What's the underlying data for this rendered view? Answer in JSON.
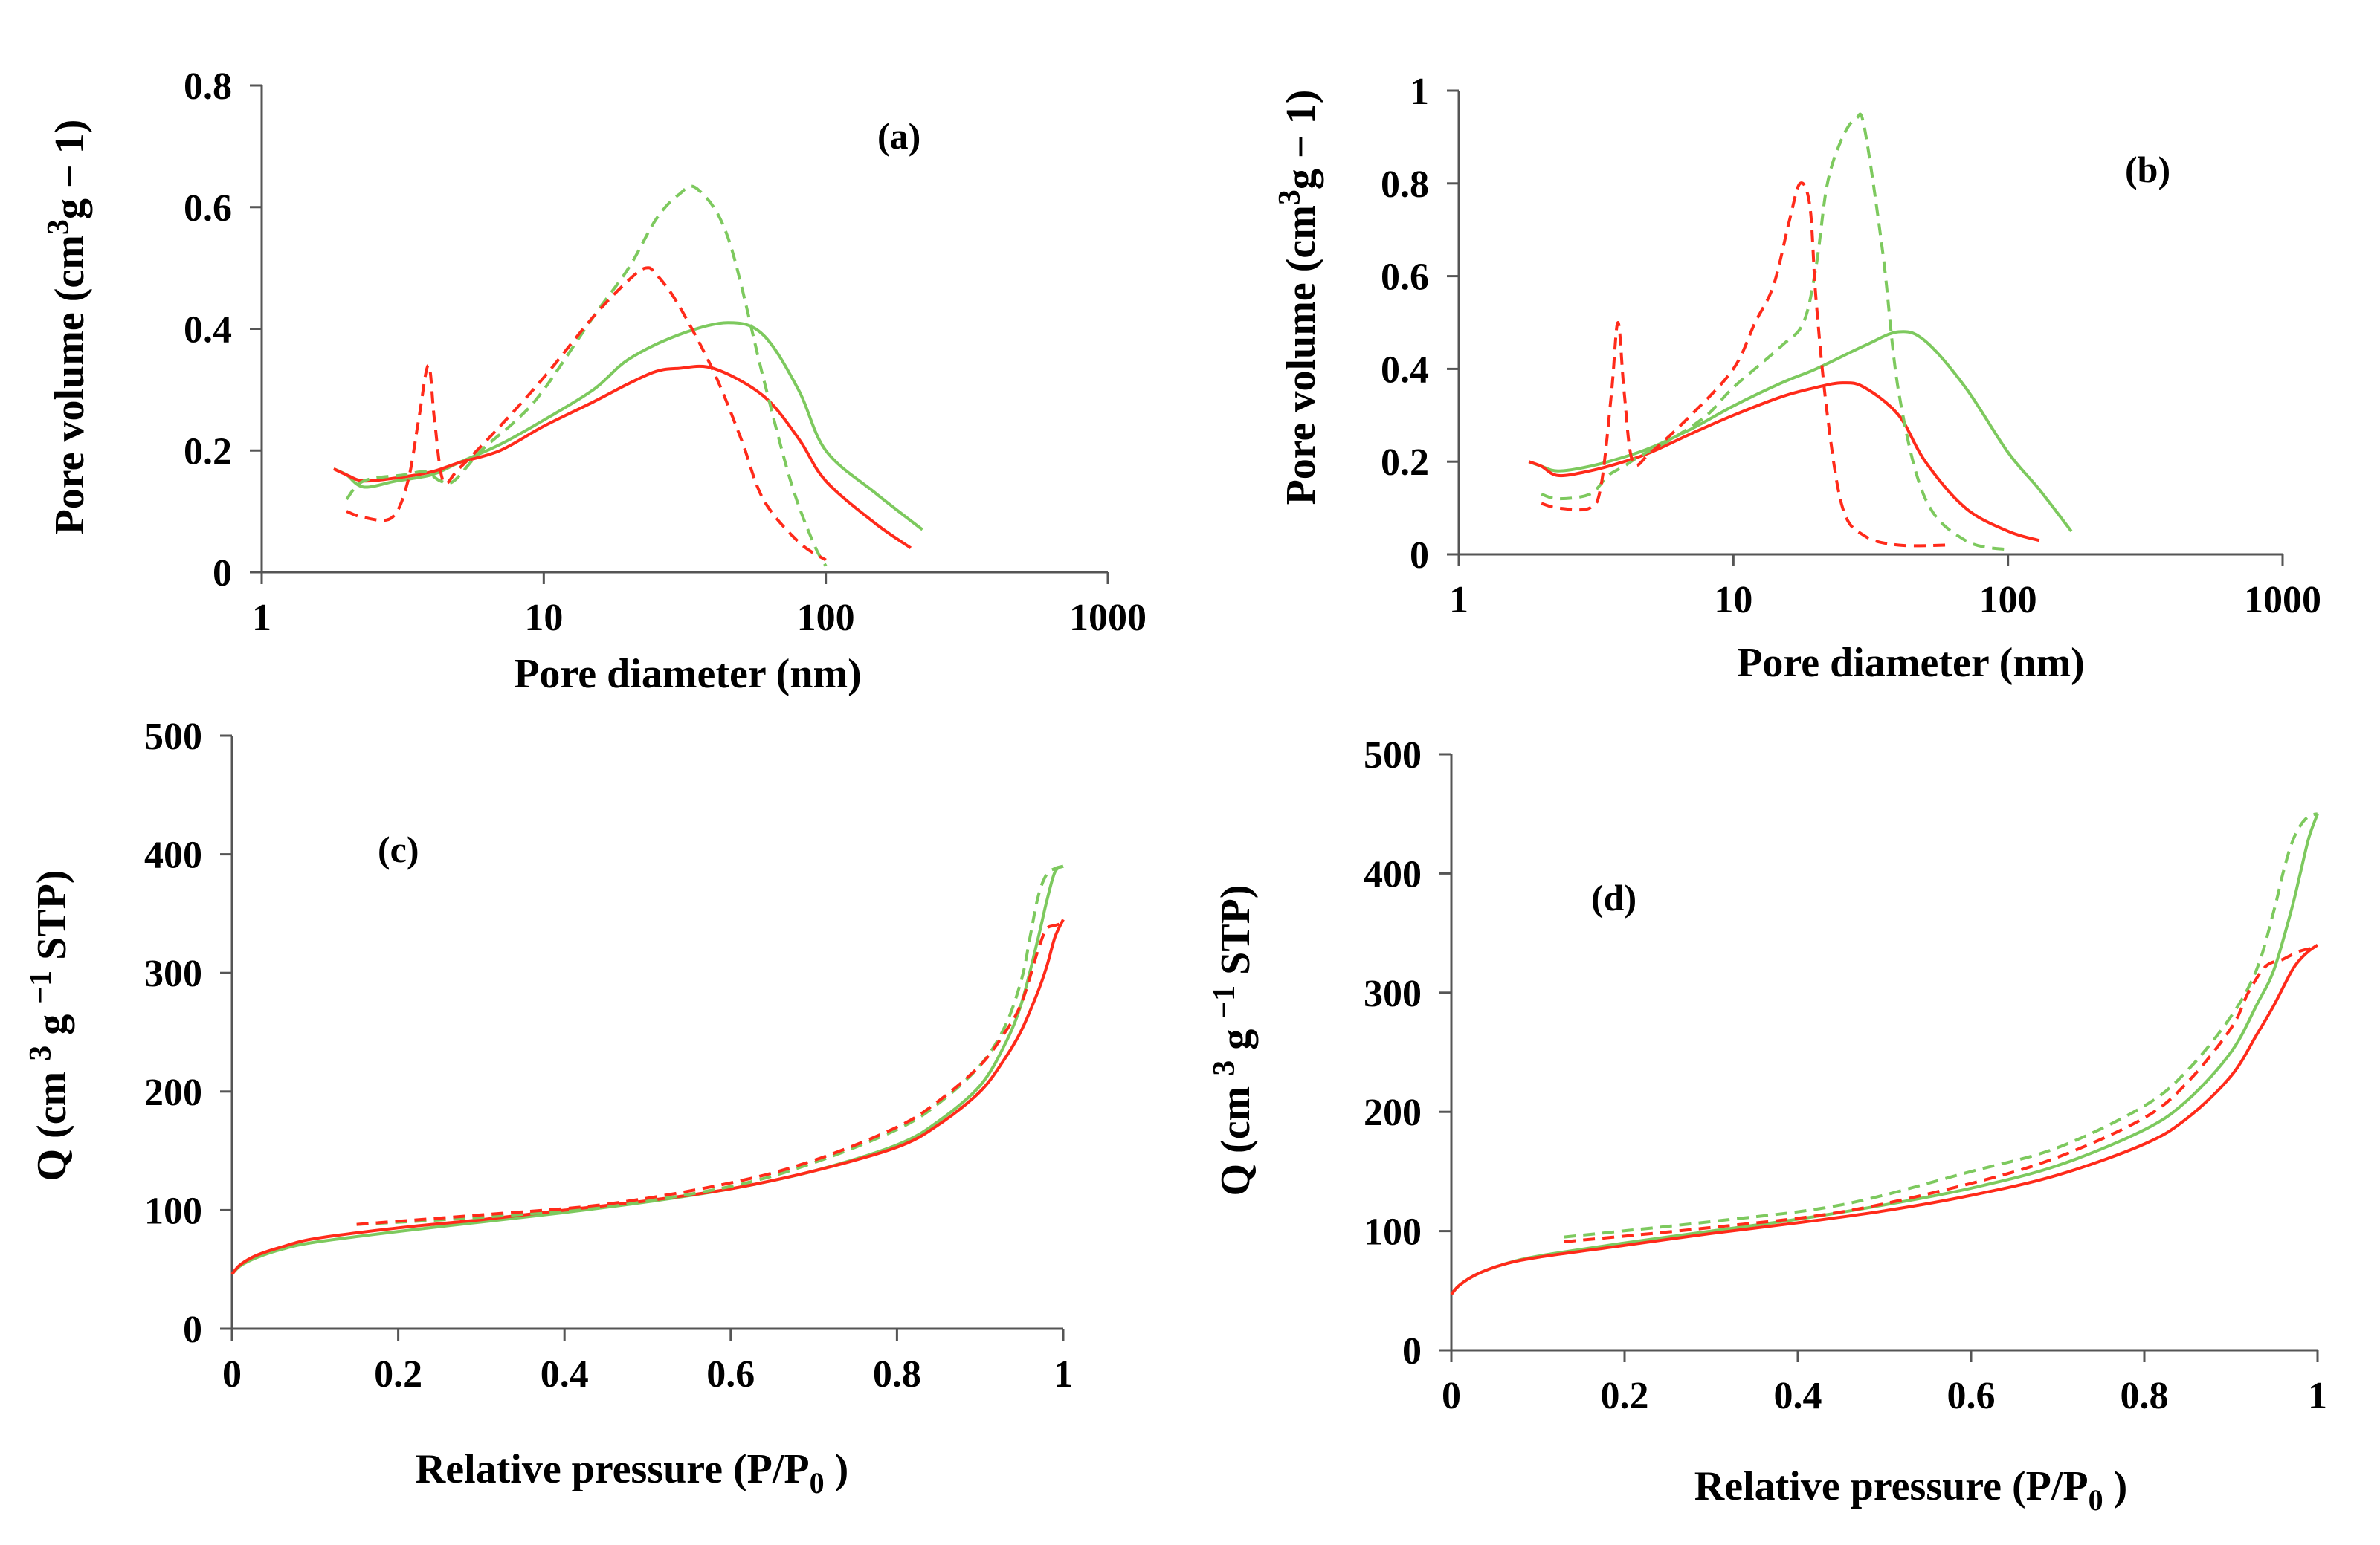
{
  "chart_data": [
    {
      "id": "a",
      "type": "line",
      "panel_label": "(a)",
      "xlabel": "Pore diameter (nm)",
      "ylabel": "Pore volume (cm3g − 1)",
      "ylabel_parts": {
        "pre": "Pore volume (cm",
        "sup": "3",
        "post": "g − 1)"
      },
      "x_scale": "log",
      "xlim": [
        1,
        1000
      ],
      "ylim": [
        0,
        0.8
      ],
      "xticks": [
        1,
        10,
        100,
        1000
      ],
      "xtick_labels": [
        "1",
        "10",
        "100",
        "1000"
      ],
      "yticks": [
        0,
        0.2,
        0.4,
        0.6,
        0.8
      ],
      "ytick_labels": [
        "0",
        "0.2",
        "0.4",
        "0.6",
        "0.8"
      ],
      "series": [
        {
          "name": "green-solid",
          "color": "#7dc95e",
          "dash": false,
          "x": [
            1.8,
            2.0,
            2.3,
            3,
            4,
            5,
            7,
            10,
            15,
            20,
            30,
            45,
            60,
            80,
            100,
            150,
            220
          ],
          "y": [
            0.17,
            0.16,
            0.14,
            0.15,
            0.16,
            0.18,
            0.21,
            0.25,
            0.3,
            0.35,
            0.39,
            0.41,
            0.39,
            0.3,
            0.2,
            0.13,
            0.07
          ]
        },
        {
          "name": "red-solid",
          "color": "#ff2a1a",
          "dash": false,
          "x": [
            1.8,
            2.0,
            2.3,
            3,
            4,
            5,
            7,
            10,
            15,
            20,
            25,
            30,
            40,
            60,
            80,
            100,
            150,
            200
          ],
          "y": [
            0.17,
            0.16,
            0.15,
            0.155,
            0.165,
            0.18,
            0.2,
            0.24,
            0.28,
            0.31,
            0.33,
            0.335,
            0.335,
            0.29,
            0.22,
            0.15,
            0.08,
            0.04
          ]
        },
        {
          "name": "green-dashed",
          "color": "#7dc95e",
          "dash": true,
          "x": [
            2.0,
            2.3,
            3.2,
            3.8,
            4.3,
            4.8,
            6,
            8,
            10,
            15,
            20,
            25,
            30,
            35,
            45,
            60,
            75,
            90,
            100
          ],
          "y": [
            0.12,
            0.15,
            0.16,
            0.165,
            0.15,
            0.15,
            0.2,
            0.25,
            0.3,
            0.42,
            0.5,
            0.58,
            0.62,
            0.63,
            0.55,
            0.32,
            0.15,
            0.05,
            0.01
          ]
        },
        {
          "name": "red-dashed",
          "color": "#ff2a1a",
          "dash": true,
          "x": [
            2.0,
            2.3,
            2.9,
            3.3,
            3.6,
            3.9,
            4.1,
            4.4,
            5,
            7,
            10,
            15,
            20,
            23,
            25,
            30,
            40,
            50,
            60,
            80,
            100
          ],
          "y": [
            0.1,
            0.09,
            0.09,
            0.15,
            0.25,
            0.34,
            0.25,
            0.15,
            0.17,
            0.24,
            0.32,
            0.42,
            0.48,
            0.5,
            0.49,
            0.44,
            0.33,
            0.22,
            0.12,
            0.05,
            0.02
          ]
        }
      ]
    },
    {
      "id": "b",
      "type": "line",
      "panel_label": "(b)",
      "xlabel": "Pore diameter (nm)",
      "ylabel": "Pore volume (cm3g − 1)",
      "ylabel_parts": {
        "pre": "Pore volume (cm",
        "sup": "3",
        "post": "g − 1)"
      },
      "x_scale": "log",
      "xlim": [
        1,
        1000
      ],
      "ylim": [
        0,
        1
      ],
      "xticks": [
        1,
        10,
        100,
        1000
      ],
      "xtick_labels": [
        "1",
        "10",
        "100",
        "1000"
      ],
      "yticks": [
        0,
        0.2,
        0.4,
        0.6,
        0.8,
        1
      ],
      "ytick_labels": [
        "0",
        "0.2",
        "0.4",
        "0.6",
        "0.8",
        "1"
      ],
      "series": [
        {
          "name": "green-solid",
          "color": "#7dc95e",
          "dash": false,
          "x": [
            1.8,
            2.0,
            2.3,
            3,
            4,
            5,
            7,
            10,
            15,
            20,
            30,
            40,
            50,
            70,
            100,
            130,
            170
          ],
          "y": [
            0.2,
            0.19,
            0.18,
            0.19,
            0.21,
            0.23,
            0.27,
            0.32,
            0.37,
            0.4,
            0.45,
            0.48,
            0.46,
            0.36,
            0.22,
            0.14,
            0.05
          ]
        },
        {
          "name": "red-solid",
          "color": "#ff2a1a",
          "dash": false,
          "x": [
            1.8,
            2.0,
            2.3,
            3,
            4,
            5,
            7,
            10,
            15,
            20,
            25,
            30,
            40,
            50,
            70,
            100,
            130
          ],
          "y": [
            0.2,
            0.19,
            0.17,
            0.18,
            0.2,
            0.22,
            0.26,
            0.3,
            0.34,
            0.36,
            0.37,
            0.36,
            0.3,
            0.2,
            0.1,
            0.05,
            0.03
          ]
        },
        {
          "name": "green-dashed",
          "color": "#7dc95e",
          "dash": true,
          "x": [
            2.0,
            2.3,
            3.0,
            3.5,
            4.0,
            4.5,
            6,
            8,
            10,
            15,
            18,
            20,
            22,
            25,
            28,
            30,
            35,
            40,
            50,
            70,
            100
          ],
          "y": [
            0.13,
            0.12,
            0.13,
            0.17,
            0.19,
            0.21,
            0.25,
            0.3,
            0.36,
            0.45,
            0.5,
            0.62,
            0.8,
            0.9,
            0.94,
            0.92,
            0.65,
            0.35,
            0.12,
            0.03,
            0.01
          ]
        },
        {
          "name": "red-dashed",
          "color": "#ff2a1a",
          "dash": true,
          "x": [
            2.0,
            2.3,
            3.0,
            3.3,
            3.6,
            3.8,
            4.0,
            4.3,
            5,
            7,
            10,
            12,
            14,
            16,
            17.5,
            19,
            20,
            22,
            25,
            30,
            40,
            60
          ],
          "y": [
            0.11,
            0.1,
            0.1,
            0.15,
            0.35,
            0.5,
            0.35,
            0.2,
            0.22,
            0.3,
            0.4,
            0.5,
            0.58,
            0.72,
            0.8,
            0.75,
            0.55,
            0.3,
            0.1,
            0.04,
            0.02,
            0.02
          ]
        }
      ]
    },
    {
      "id": "c",
      "type": "line",
      "panel_label": "(c)",
      "xlabel": "Relative pressure (P/P0 )",
      "xlabel_parts": {
        "pre": "Relative pressure (P/P",
        "sub": "0",
        "post": " )"
      },
      "ylabel": "Q (cm 3 g −1 STP)",
      "ylabel_parts": {
        "pre": "Q (cm ",
        "sup": "3",
        "post": " g ",
        "sup2": "−1",
        "post2": " STP)"
      },
      "x_scale": "linear",
      "xlim": [
        0,
        1
      ],
      "ylim": [
        0,
        500
      ],
      "xticks": [
        0,
        0.2,
        0.4,
        0.6,
        0.8,
        1
      ],
      "xtick_labels": [
        "0",
        "0.2",
        "0.4",
        "0.6",
        "0.8",
        "1"
      ],
      "yticks": [
        0,
        100,
        200,
        300,
        400,
        500
      ],
      "ytick_labels": [
        "0",
        "100",
        "200",
        "300",
        "400",
        "500"
      ],
      "series": [
        {
          "name": "green-solid",
          "color": "#7dc95e",
          "dash": false,
          "x": [
            0.0,
            0.01,
            0.03,
            0.06,
            0.1,
            0.2,
            0.3,
            0.4,
            0.5,
            0.6,
            0.7,
            0.8,
            0.85,
            0.9,
            0.93,
            0.95,
            0.97,
            0.98,
            0.99,
            1.0
          ],
          "y": [
            46,
            53,
            60,
            67,
            73,
            82,
            90,
            98,
            107,
            118,
            133,
            155,
            175,
            205,
            240,
            275,
            330,
            360,
            385,
            390
          ]
        },
        {
          "name": "red-solid",
          "color": "#ff2a1a",
          "dash": false,
          "x": [
            0.0,
            0.01,
            0.03,
            0.06,
            0.1,
            0.2,
            0.3,
            0.4,
            0.5,
            0.6,
            0.7,
            0.8,
            0.85,
            0.9,
            0.93,
            0.95,
            0.97,
            0.98,
            0.99,
            1.0
          ],
          "y": [
            46,
            54,
            62,
            69,
            76,
            85,
            92,
            100,
            108,
            118,
            133,
            153,
            172,
            200,
            228,
            252,
            285,
            305,
            330,
            345
          ]
        },
        {
          "name": "green-dashed",
          "color": "#7dc95e",
          "dash": true,
          "x": [
            0.15,
            0.3,
            0.45,
            0.6,
            0.7,
            0.8,
            0.85,
            0.9,
            0.93,
            0.95,
            0.96,
            0.97,
            0.98,
            0.99,
            1.0
          ],
          "y": [
            88,
            94,
            103,
            120,
            140,
            168,
            190,
            222,
            255,
            295,
            330,
            365,
            383,
            388,
            390
          ]
        },
        {
          "name": "red-dashed",
          "color": "#ff2a1a",
          "dash": true,
          "x": [
            0.15,
            0.3,
            0.45,
            0.6,
            0.7,
            0.8,
            0.85,
            0.9,
            0.93,
            0.95,
            0.97,
            0.98,
            0.99,
            1.0
          ],
          "y": [
            88,
            96,
            105,
            123,
            142,
            170,
            192,
            222,
            250,
            275,
            320,
            337,
            340,
            342
          ]
        }
      ]
    },
    {
      "id": "d",
      "type": "line",
      "panel_label": "(d)",
      "xlabel": "Relative pressure (P/P0 )",
      "xlabel_parts": {
        "pre": "Relative pressure (P/P",
        "sub": "0",
        "post": " )"
      },
      "ylabel": "Q (cm 3 g −1 STP)",
      "ylabel_parts": {
        "pre": "Q (cm ",
        "sup": "3",
        "post": " g ",
        "sup2": "−1",
        "post2": " STP)"
      },
      "x_scale": "linear",
      "xlim": [
        0,
        1
      ],
      "ylim": [
        0,
        500
      ],
      "xticks": [
        0,
        0.2,
        0.4,
        0.6,
        0.8,
        1
      ],
      "xtick_labels": [
        "0",
        "0.2",
        "0.4",
        "0.6",
        "0.8",
        "1"
      ],
      "yticks": [
        0,
        100,
        200,
        300,
        400,
        500
      ],
      "ytick_labels": [
        "0",
        "100",
        "200",
        "300",
        "400",
        "500"
      ],
      "series": [
        {
          "name": "green-solid",
          "color": "#7dc95e",
          "dash": false,
          "x": [
            0.0,
            0.01,
            0.03,
            0.06,
            0.1,
            0.2,
            0.3,
            0.4,
            0.5,
            0.6,
            0.7,
            0.8,
            0.85,
            0.9,
            0.93,
            0.95,
            0.97,
            0.98,
            0.99,
            1.0
          ],
          "y": [
            47,
            55,
            64,
            72,
            79,
            90,
            100,
            110,
            122,
            136,
            155,
            185,
            210,
            250,
            290,
            320,
            370,
            400,
            430,
            450
          ]
        },
        {
          "name": "red-solid",
          "color": "#ff2a1a",
          "dash": false,
          "x": [
            0.0,
            0.01,
            0.03,
            0.06,
            0.1,
            0.2,
            0.3,
            0.4,
            0.5,
            0.6,
            0.7,
            0.8,
            0.85,
            0.9,
            0.93,
            0.95,
            0.97,
            0.98,
            0.99,
            1.0
          ],
          "y": [
            47,
            55,
            64,
            72,
            78,
            88,
            98,
            107,
            117,
            130,
            147,
            173,
            195,
            230,
            265,
            290,
            318,
            328,
            335,
            340
          ]
        },
        {
          "name": "green-dashed",
          "color": "#7dc95e",
          "dash": true,
          "x": [
            0.13,
            0.3,
            0.45,
            0.6,
            0.7,
            0.8,
            0.85,
            0.9,
            0.93,
            0.95,
            0.96,
            0.97,
            0.98,
            0.99,
            1.0
          ],
          "y": [
            95,
            108,
            122,
            150,
            170,
            205,
            235,
            280,
            320,
            370,
            400,
            425,
            440,
            448,
            450
          ]
        },
        {
          "name": "red-dashed",
          "color": "#ff2a1a",
          "dash": true,
          "x": [
            0.13,
            0.3,
            0.45,
            0.6,
            0.7,
            0.8,
            0.85,
            0.9,
            0.92,
            0.94,
            0.96,
            0.98,
            1.0
          ],
          "y": [
            91,
            103,
            116,
            140,
            162,
            195,
            225,
            270,
            300,
            322,
            328,
            335,
            338
          ]
        }
      ]
    }
  ]
}
